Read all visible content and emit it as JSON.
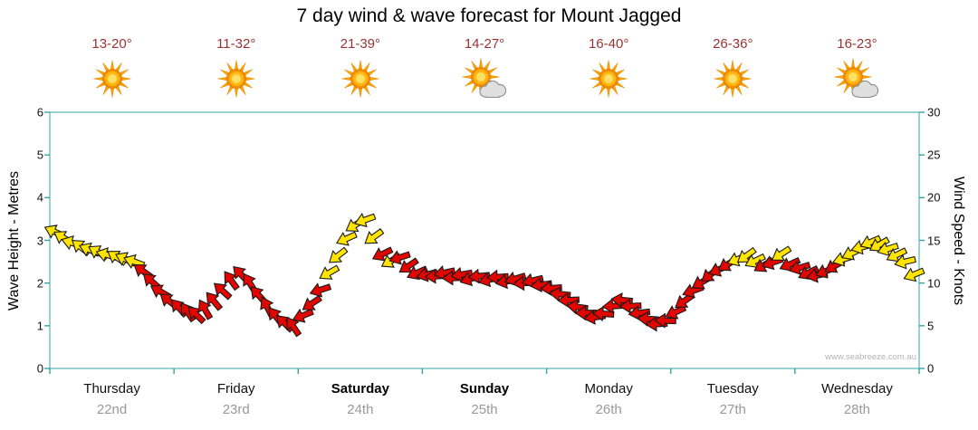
{
  "title": "7 day wind & wave forecast for Mount Jagged",
  "watermark": "www.seabreeze.com.au",
  "header": {
    "temps": [
      "13-20°",
      "11-32°",
      "21-39°",
      "14-27°",
      "16-40°",
      "26-36°",
      "16-23°"
    ],
    "icons": [
      "sunny",
      "sunny",
      "sunny",
      "partly-cloudy",
      "sunny",
      "sunny",
      "partly-cloudy"
    ]
  },
  "days": [
    {
      "name": "Thursday",
      "date": "22nd",
      "bold": false
    },
    {
      "name": "Friday",
      "date": "23rd",
      "bold": false
    },
    {
      "name": "Saturday",
      "date": "24th",
      "bold": true
    },
    {
      "name": "Sunday",
      "date": "25th",
      "bold": true
    },
    {
      "name": "Monday",
      "date": "26th",
      "bold": false
    },
    {
      "name": "Tuesday",
      "date": "27th",
      "bold": false
    },
    {
      "name": "Wednesday",
      "date": "28th",
      "bold": false
    }
  ],
  "axes": {
    "left_label": "Wave Height - Metres",
    "left_ticks": [
      0,
      1,
      2,
      3,
      4,
      5,
      6
    ],
    "left_range": [
      0,
      6
    ],
    "right_label": "Wind Speed - Knots",
    "right_ticks": [
      0,
      5,
      10,
      15,
      20,
      25,
      30
    ],
    "right_range": [
      0,
      30
    ]
  },
  "colors": {
    "arrow_yellow": "#FFE400",
    "arrow_red": "#E10600",
    "arrow_outline": "#1a1a1a",
    "axis": "#35A4A4",
    "temp_text": "#993333",
    "date_text": "#999999"
  },
  "chart_data": {
    "type": "scatter",
    "subtype": "wind-arrow-forecast",
    "title": "7 day wind & wave forecast for Mount Jagged",
    "x_unit": "days from start of Thursday 22nd (0-7)",
    "y_unit": "wind speed in knots (right axis); wave-height axis 0-6 m is 1m = 5kn",
    "xlim": [
      0,
      7
    ],
    "ylim_knots": [
      0,
      30
    ],
    "ylim_metres": [
      0,
      6
    ],
    "grid": false,
    "legend": "none",
    "arrow_colors": {
      "y": "yellow (stronger wind)",
      "r": "red (lighter wind)"
    },
    "point_format": [
      "t_days",
      "knots",
      "direction_deg_cw_from_east",
      "color"
    ],
    "points": [
      [
        0.04,
        16.0,
        205,
        "y"
      ],
      [
        0.11,
        15.3,
        212,
        "y"
      ],
      [
        0.18,
        14.7,
        198,
        "y"
      ],
      [
        0.25,
        14.2,
        218,
        "y"
      ],
      [
        0.32,
        13.9,
        203,
        "y"
      ],
      [
        0.39,
        13.6,
        210,
        "y"
      ],
      [
        0.46,
        13.3,
        196,
        "y"
      ],
      [
        0.54,
        13.0,
        214,
        "y"
      ],
      [
        0.61,
        12.8,
        206,
        "y"
      ],
      [
        0.68,
        12.5,
        200,
        "y"
      ],
      [
        0.75,
        11.4,
        216,
        "r"
      ],
      [
        0.82,
        10.2,
        222,
        "r"
      ],
      [
        0.89,
        9.0,
        210,
        "r"
      ],
      [
        0.96,
        7.9,
        218,
        "r"
      ],
      [
        1.04,
        7.1,
        228,
        "r"
      ],
      [
        1.11,
        6.6,
        236,
        "r"
      ],
      [
        1.18,
        6.3,
        224,
        "r"
      ],
      [
        1.25,
        6.9,
        240,
        "r"
      ],
      [
        1.32,
        7.9,
        230,
        "r"
      ],
      [
        1.39,
        9.1,
        222,
        "r"
      ],
      [
        1.46,
        10.3,
        234,
        "r"
      ],
      [
        1.54,
        11.0,
        226,
        "r"
      ],
      [
        1.61,
        10.0,
        238,
        "r"
      ],
      [
        1.68,
        8.6,
        228,
        "r"
      ],
      [
        1.75,
        7.2,
        242,
        "r"
      ],
      [
        1.82,
        6.1,
        232,
        "r"
      ],
      [
        1.89,
        5.3,
        224,
        "r"
      ],
      [
        1.96,
        4.9,
        236,
        "r"
      ],
      [
        2.04,
        6.2,
        158,
        "r"
      ],
      [
        2.11,
        7.6,
        146,
        "r"
      ],
      [
        2.18,
        9.2,
        162,
        "r"
      ],
      [
        2.25,
        11.2,
        150,
        "y"
      ],
      [
        2.32,
        13.2,
        142,
        "y"
      ],
      [
        2.39,
        15.2,
        156,
        "y"
      ],
      [
        2.46,
        16.8,
        148,
        "y"
      ],
      [
        2.54,
        17.4,
        160,
        "y"
      ],
      [
        2.61,
        15.4,
        144,
        "y"
      ],
      [
        2.68,
        13.4,
        154,
        "r"
      ],
      [
        2.75,
        12.6,
        150,
        "y"
      ],
      [
        2.82,
        13.0,
        162,
        "r"
      ],
      [
        2.89,
        12.0,
        146,
        "r"
      ],
      [
        2.96,
        11.2,
        156,
        "r"
      ],
      [
        3.04,
        11.0,
        166,
        "r"
      ],
      [
        3.11,
        10.8,
        176,
        "r"
      ],
      [
        3.18,
        11.2,
        168,
        "r"
      ],
      [
        3.25,
        10.6,
        178,
        "r"
      ],
      [
        3.32,
        11.0,
        170,
        "r"
      ],
      [
        3.39,
        10.5,
        162,
        "r"
      ],
      [
        3.46,
        10.8,
        174,
        "r"
      ],
      [
        3.54,
        10.4,
        166,
        "r"
      ],
      [
        3.61,
        10.7,
        176,
        "r"
      ],
      [
        3.68,
        10.2,
        168,
        "r"
      ],
      [
        3.75,
        10.5,
        163,
        "r"
      ],
      [
        3.82,
        10.0,
        174,
        "r"
      ],
      [
        3.89,
        10.3,
        167,
        "r"
      ],
      [
        3.96,
        9.8,
        172,
        "r"
      ],
      [
        4.04,
        9.4,
        176,
        "r"
      ],
      [
        4.11,
        8.7,
        186,
        "r"
      ],
      [
        4.18,
        8.0,
        178,
        "r"
      ],
      [
        4.25,
        7.2,
        188,
        "r"
      ],
      [
        4.32,
        6.5,
        180,
        "r"
      ],
      [
        4.39,
        6.0,
        172,
        "r"
      ],
      [
        4.46,
        6.4,
        184,
        "r"
      ],
      [
        4.54,
        7.3,
        176,
        "r"
      ],
      [
        4.61,
        8.0,
        186,
        "r"
      ],
      [
        4.68,
        7.3,
        178,
        "r"
      ],
      [
        4.75,
        6.5,
        173,
        "r"
      ],
      [
        4.82,
        5.8,
        184,
        "r"
      ],
      [
        4.89,
        5.2,
        177,
        "r"
      ],
      [
        4.96,
        5.6,
        182,
        "r"
      ],
      [
        5.04,
        6.6,
        155,
        "r"
      ],
      [
        5.11,
        7.9,
        145,
        "r"
      ],
      [
        5.18,
        9.1,
        160,
        "r"
      ],
      [
        5.25,
        10.1,
        150,
        "r"
      ],
      [
        5.32,
        11.0,
        142,
        "r"
      ],
      [
        5.39,
        11.6,
        156,
        "r"
      ],
      [
        5.46,
        12.2,
        148,
        "r"
      ],
      [
        5.54,
        12.8,
        158,
        "y"
      ],
      [
        5.61,
        13.2,
        144,
        "y"
      ],
      [
        5.68,
        12.6,
        154,
        "y"
      ],
      [
        5.75,
        12.1,
        150,
        "r"
      ],
      [
        5.82,
        12.4,
        161,
        "r"
      ],
      [
        5.89,
        13.4,
        147,
        "y"
      ],
      [
        5.96,
        12.2,
        156,
        "r"
      ],
      [
        6.04,
        11.8,
        164,
        "r"
      ],
      [
        6.11,
        11.2,
        154,
        "r"
      ],
      [
        6.18,
        10.9,
        168,
        "r"
      ],
      [
        6.25,
        11.4,
        158,
        "r"
      ],
      [
        6.32,
        12.0,
        150,
        "r"
      ],
      [
        6.39,
        12.8,
        163,
        "y"
      ],
      [
        6.46,
        13.5,
        155,
        "y"
      ],
      [
        6.54,
        14.2,
        165,
        "y"
      ],
      [
        6.61,
        14.8,
        157,
        "y"
      ],
      [
        6.68,
        14.5,
        150,
        "y"
      ],
      [
        6.75,
        14.0,
        162,
        "y"
      ],
      [
        6.82,
        13.3,
        154,
        "y"
      ],
      [
        6.89,
        12.5,
        166,
        "y"
      ],
      [
        6.96,
        11.0,
        158,
        "y"
      ]
    ]
  }
}
